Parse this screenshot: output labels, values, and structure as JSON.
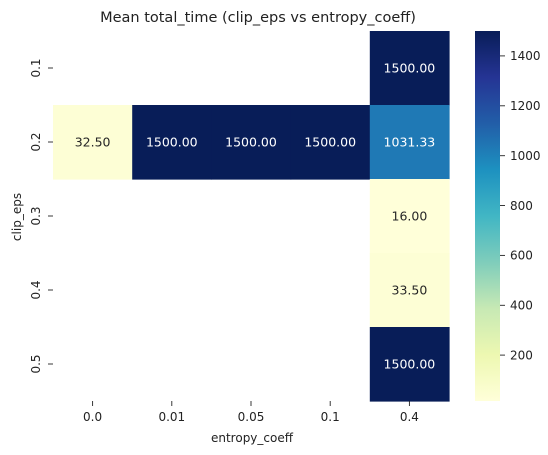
{
  "chart_data": {
    "type": "heatmap",
    "title": "Mean total_time (clip_eps vs entropy_coeff)",
    "xlabel": "entropy_coeff",
    "ylabel": "clip_eps",
    "x_categories": [
      "0.0",
      "0.01",
      "0.05",
      "0.1",
      "0.4"
    ],
    "y_categories": [
      "0.1",
      "0.2",
      "0.3",
      "0.4",
      "0.5"
    ],
    "values": [
      [
        null,
        null,
        null,
        null,
        1500.0
      ],
      [
        32.5,
        1500.0,
        1500.0,
        1500.0,
        1031.33
      ],
      [
        null,
        null,
        null,
        null,
        16.0
      ],
      [
        null,
        null,
        null,
        null,
        33.5
      ],
      [
        null,
        null,
        null,
        null,
        1500.0
      ]
    ],
    "value_format": "0.00",
    "colormap": "YlGnBu",
    "colorbar": {
      "range": [
        16.0,
        1500.0
      ],
      "ticks": [
        200,
        400,
        600,
        800,
        1000,
        1200,
        1400
      ],
      "tick_labels": [
        "200",
        "400",
        "600",
        "800",
        "1000",
        "1200",
        "1400"
      ]
    },
    "text_colors": {
      "on_dark": "#ffffff",
      "on_light": "#262626"
    }
  }
}
